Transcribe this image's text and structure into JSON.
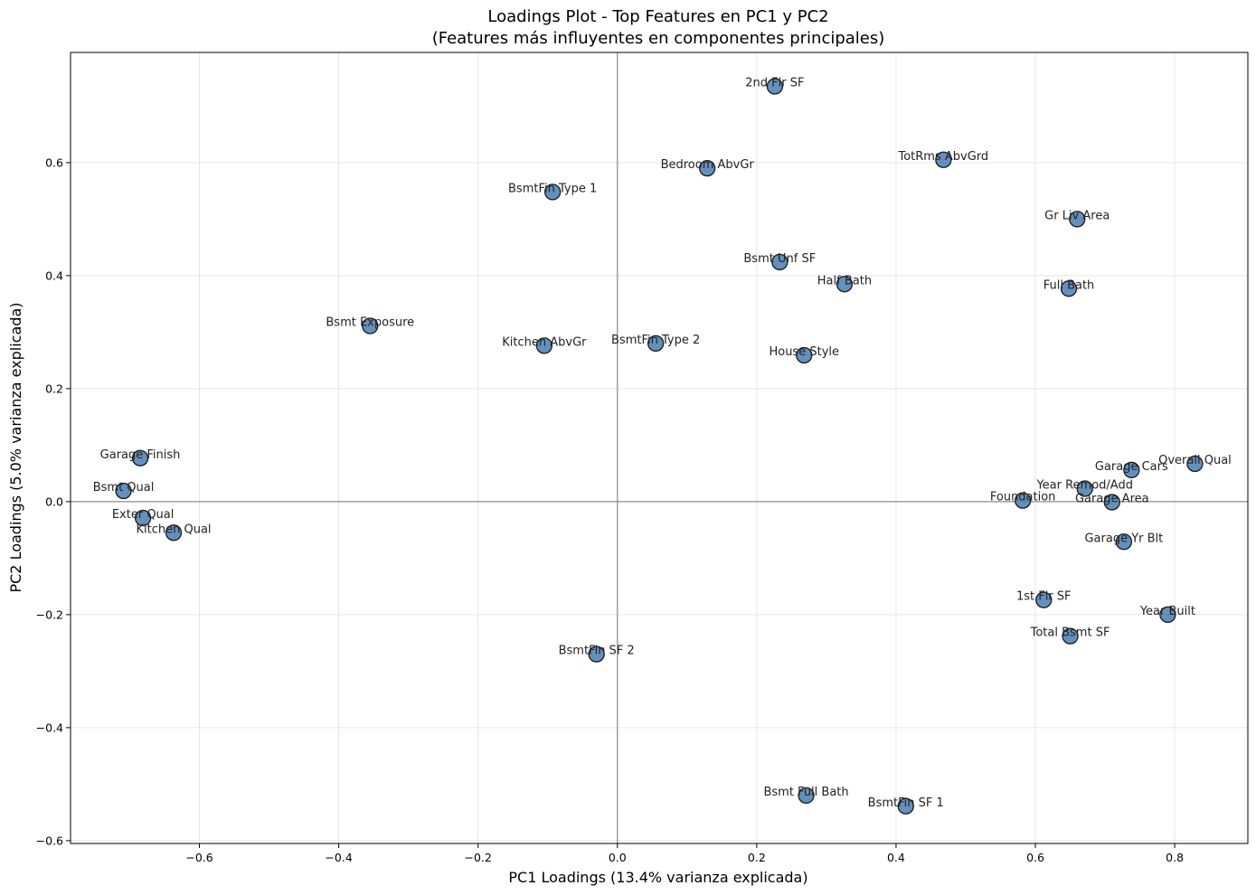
{
  "chart_data": {
    "type": "scatter",
    "title": "Loadings Plot - Top Features en PC1 y PC2",
    "subtitle": "(Features más influyentes en componentes principales)",
    "xlabel": "PC1 Loadings (13.4% varianza explicada)",
    "ylabel": "PC2 Loadings (5.0% varianza explicada)",
    "xlim": [
      -0.785,
      0.905
    ],
    "ylim": [
      -0.605,
      0.795
    ],
    "xticks": [
      -0.6,
      -0.4,
      -0.2,
      0.0,
      0.2,
      0.4,
      0.6,
      0.8
    ],
    "yticks": [
      -0.6,
      -0.4,
      -0.2,
      0.0,
      0.2,
      0.4,
      0.6
    ],
    "xtick_labels": [
      "−0.6",
      "−0.4",
      "−0.2",
      "0.0",
      "0.2",
      "0.4",
      "0.6",
      "0.8"
    ],
    "ytick_labels": [
      "−0.6",
      "−0.4",
      "−0.2",
      "0.0",
      "0.2",
      "0.4",
      "0.6"
    ],
    "grid": true,
    "reference_lines": {
      "x": 0,
      "y": 0
    },
    "marker_color": "#4f81b5",
    "marker_edge_color": "#1a1a1a",
    "points": [
      {
        "label": "2nd Flr SF",
        "x": 0.226,
        "y": 0.735
      },
      {
        "label": "TotRms AbvGrd",
        "x": 0.468,
        "y": 0.605
      },
      {
        "label": "Bedroom AbvGr",
        "x": 0.129,
        "y": 0.59
      },
      {
        "label": "BsmtFin Type 1",
        "x": -0.093,
        "y": 0.548
      },
      {
        "label": "Gr Liv Area",
        "x": 0.66,
        "y": 0.5
      },
      {
        "label": "Bsmt Unf SF",
        "x": 0.233,
        "y": 0.424
      },
      {
        "label": "Half Bath",
        "x": 0.326,
        "y": 0.385
      },
      {
        "label": "Full Bath",
        "x": 0.648,
        "y": 0.377
      },
      {
        "label": "Bsmt Exposure",
        "x": -0.355,
        "y": 0.311
      },
      {
        "label": "Kitchen AbvGr",
        "x": -0.105,
        "y": 0.276
      },
      {
        "label": "BsmtFin Type 2",
        "x": 0.055,
        "y": 0.28
      },
      {
        "label": "House Style",
        "x": 0.268,
        "y": 0.259
      },
      {
        "label": "Garage Finish",
        "x": -0.685,
        "y": 0.077
      },
      {
        "label": "Overall Qual",
        "x": 0.829,
        "y": 0.067
      },
      {
        "label": "Garage Cars",
        "x": 0.738,
        "y": 0.056
      },
      {
        "label": "Year Remod/Add",
        "x": 0.671,
        "y": 0.023
      },
      {
        "label": "Bsmt Qual",
        "x": -0.709,
        "y": 0.019
      },
      {
        "label": "Foundation",
        "x": 0.582,
        "y": 0.002
      },
      {
        "label": "Garage Area",
        "x": 0.71,
        "y": -0.001
      },
      {
        "label": "Exter Qual",
        "x": -0.681,
        "y": -0.029
      },
      {
        "label": "Kitchen Qual",
        "x": -0.637,
        "y": -0.055
      },
      {
        "label": "Garage Yr Blt",
        "x": 0.727,
        "y": -0.071
      },
      {
        "label": "1st Flr SF",
        "x": 0.612,
        "y": -0.174
      },
      {
        "label": "Year Built",
        "x": 0.79,
        "y": -0.2
      },
      {
        "label": "Total Bsmt SF",
        "x": 0.65,
        "y": -0.238
      },
      {
        "label": "BsmtFin SF 2",
        "x": -0.03,
        "y": -0.27
      },
      {
        "label": "Bsmt Full Bath",
        "x": 0.271,
        "y": -0.52
      },
      {
        "label": "BsmtFin SF 1",
        "x": 0.414,
        "y": -0.539
      }
    ]
  }
}
